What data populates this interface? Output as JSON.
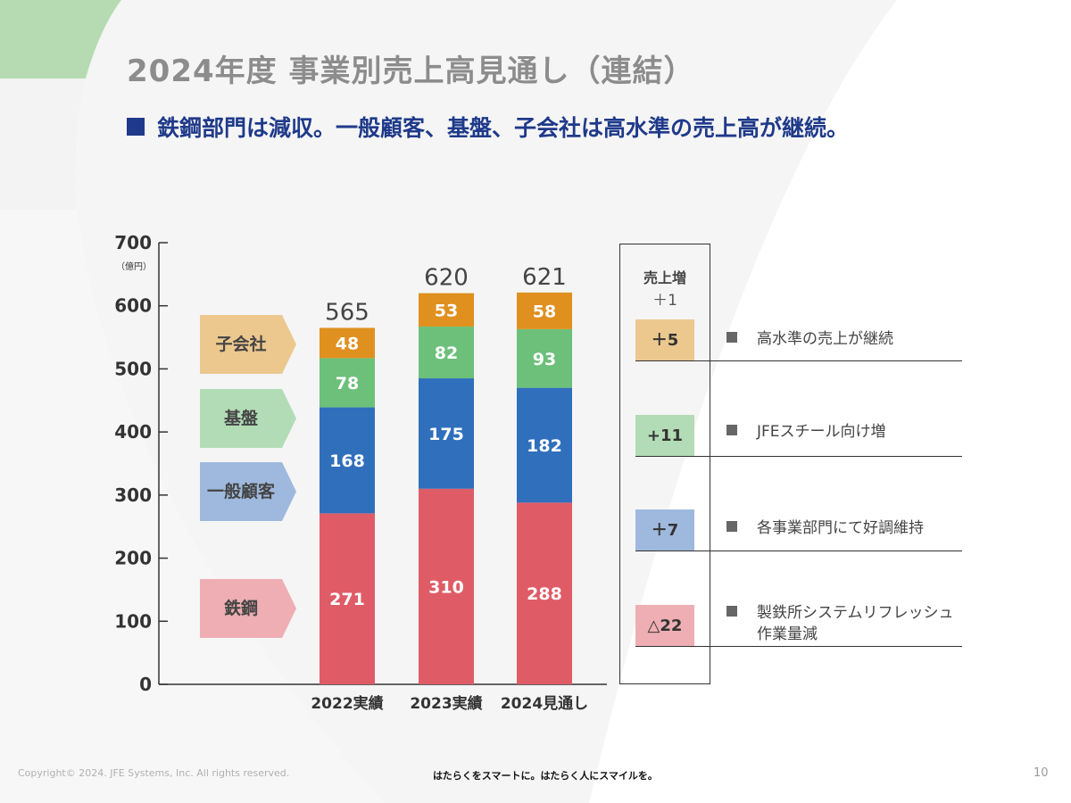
{
  "page": {
    "title": "2024年度 事業別売上高見通し（連結）",
    "subtitle": "鉄鋼部門は減収。一般顧客、基盤、子会社は高水準の売上高が継続。",
    "footer_left": "Copyright© 2024. JFE Systems, Inc. All rights reserved.",
    "footer_center": "はたらくをスマートに。はたらく人にスマイルを。",
    "page_number": "10"
  },
  "segment_labels": [
    "子会社",
    "基盤",
    "一般顧客",
    "鉄鋼"
  ],
  "side_box": {
    "header": "売上増",
    "header_value": "＋1",
    "rows": [
      {
        "delta": "＋5",
        "note_lines": [
          "高水準の売上が継続"
        ],
        "color": "#ecc88f"
      },
      {
        "delta": "+11",
        "note_lines": [
          "JFEスチール向け増"
        ],
        "color": "#b2dcb6"
      },
      {
        "delta": "＋7",
        "note_lines": [
          "各事業部門にて好調維持"
        ],
        "color": "#9fb9de"
      },
      {
        "delta": "△22",
        "note_lines": [
          "製鉄所システムリフレッシュ",
          "作業量減"
        ],
        "color": "#eeaeb3"
      }
    ]
  },
  "chart_data": {
    "type": "bar",
    "stacked": true,
    "title": "",
    "ylabel": "（億円）",
    "ylim": [
      0,
      700
    ],
    "yticks": [
      0,
      100,
      200,
      300,
      400,
      500,
      600,
      700
    ],
    "categories": [
      "2022実績",
      "2023実績",
      "2024見通し"
    ],
    "series": [
      {
        "name": "鉄鋼",
        "values": [
          271,
          310,
          288
        ],
        "color": "#df5c66"
      },
      {
        "name": "一般顧客",
        "values": [
          168,
          175,
          182
        ],
        "color": "#306fbc"
      },
      {
        "name": "基盤",
        "values": [
          78,
          82,
          93
        ],
        "color": "#6cc07a"
      },
      {
        "name": "子会社",
        "values": [
          48,
          53,
          58
        ],
        "color": "#e0901f"
      }
    ],
    "totals": [
      565,
      620,
      621
    ]
  }
}
